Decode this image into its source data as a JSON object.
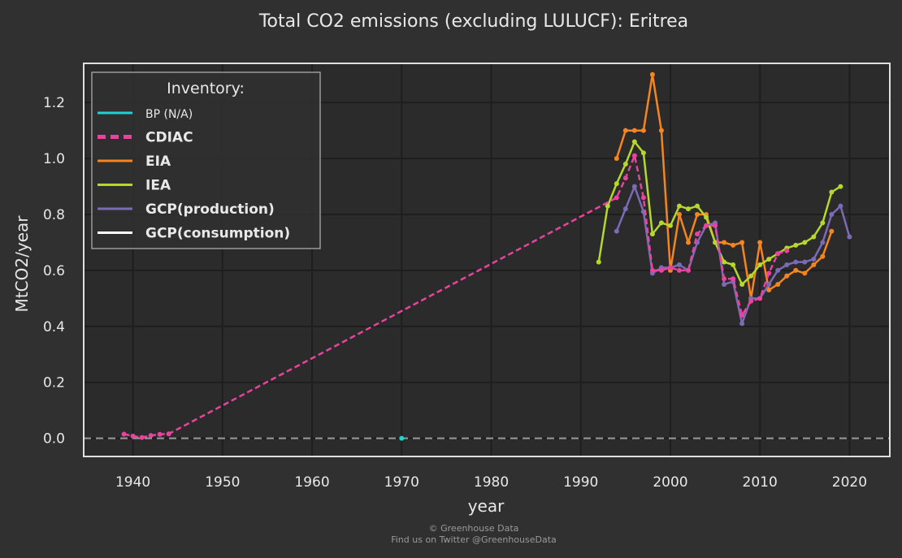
{
  "chart_data": {
    "type": "line",
    "title": "Total CO2 emissions (excluding LULUCF): Eritrea",
    "xlabel": "year",
    "ylabel": "MtCO2/year",
    "xlim": [
      1934.5,
      2024.5
    ],
    "ylim": [
      -0.065,
      1.34
    ],
    "x_ticks": [
      1940,
      1950,
      1960,
      1970,
      1980,
      1990,
      2000,
      2010,
      2020
    ],
    "y_ticks": [
      0.0,
      0.2,
      0.4,
      0.6,
      0.8,
      1.0,
      1.2
    ],
    "x_tick_labels": [
      "1940",
      "1950",
      "1960",
      "1970",
      "1980",
      "1990",
      "2000",
      "2010",
      "2020"
    ],
    "y_tick_labels": [
      "0.0",
      "0.2",
      "0.4",
      "0.6",
      "0.8",
      "1.0",
      "1.2"
    ],
    "grid": true,
    "zero_line": true,
    "legend": {
      "title": "Inventory:",
      "placement": "top-left",
      "entries": [
        {
          "label": "BP (N/A)",
          "color": "#1fd1d1",
          "style": "solid",
          "bold": false
        },
        {
          "label": "CDIAC",
          "color": "#e8439e",
          "style": "dashed",
          "bold": true
        },
        {
          "label": "EIA",
          "color": "#f5851f",
          "style": "solid",
          "bold": true
        },
        {
          "label": "IEA",
          "color": "#b5d82a",
          "style": "solid",
          "bold": true
        },
        {
          "label": "GCP(production)",
          "color": "#7b6bb5",
          "style": "solid",
          "bold": true
        },
        {
          "label": "GCP(consumption)",
          "color": "#ffffff",
          "style": "solid",
          "bold": true
        }
      ]
    },
    "series": [
      {
        "name": "BP (N/A)",
        "color": "#1fd1d1",
        "style": "solid",
        "x": [
          1970
        ],
        "y": [
          0.0
        ]
      },
      {
        "name": "CDIAC",
        "color": "#e8439e",
        "style": "dashed",
        "x": [
          1939,
          1940,
          1941,
          1942,
          1943,
          1944,
          1994,
          1995,
          1996,
          1997,
          1998,
          1999,
          2000,
          2001,
          2002,
          2003,
          2004,
          2005,
          2006,
          2007,
          2008,
          2009,
          2010,
          2011,
          2012,
          2013
        ],
        "y": [
          0.015,
          0.008,
          0.003,
          0.01,
          0.014,
          0.016,
          0.86,
          0.93,
          1.01,
          0.86,
          0.6,
          0.6,
          0.61,
          0.6,
          0.6,
          0.73,
          0.76,
          0.76,
          0.57,
          0.57,
          0.44,
          0.49,
          0.5,
          0.59,
          0.66,
          0.67
        ]
      },
      {
        "name": "EIA",
        "color": "#f5851f",
        "style": "solid",
        "x": [
          1994,
          1995,
          1996,
          1997,
          1998,
          1999,
          2000,
          2001,
          2002,
          2003,
          2004,
          2005,
          2006,
          2007,
          2008,
          2009,
          2010,
          2011,
          2012,
          2013,
          2014,
          2015,
          2016,
          2017,
          2018
        ],
        "y": [
          1.0,
          1.1,
          1.1,
          1.1,
          1.3,
          1.1,
          0.6,
          0.8,
          0.7,
          0.8,
          0.8,
          0.7,
          0.7,
          0.69,
          0.7,
          0.5,
          0.7,
          0.53,
          0.55,
          0.58,
          0.6,
          0.59,
          0.62,
          0.65,
          0.74
        ]
      },
      {
        "name": "IEA",
        "color": "#b5d82a",
        "style": "solid",
        "x": [
          1992,
          1993,
          1994,
          1995,
          1996,
          1997,
          1998,
          1999,
          2000,
          2001,
          2002,
          2003,
          2004,
          2005,
          2006,
          2007,
          2008,
          2009,
          2010,
          2011,
          2012,
          2013,
          2014,
          2015,
          2016,
          2017,
          2018,
          2019
        ],
        "y": [
          0.63,
          0.83,
          0.91,
          0.98,
          1.06,
          1.02,
          0.73,
          0.77,
          0.76,
          0.83,
          0.82,
          0.83,
          0.79,
          0.7,
          0.63,
          0.62,
          0.55,
          0.58,
          0.62,
          0.64,
          0.66,
          0.68,
          0.69,
          0.7,
          0.72,
          0.77,
          0.88,
          0.9
        ]
      },
      {
        "name": "GCP(production)",
        "color": "#7b6bb5",
        "style": "solid",
        "x": [
          1994,
          1995,
          1996,
          1997,
          1998,
          1999,
          2000,
          2001,
          2002,
          2003,
          2004,
          2005,
          2006,
          2007,
          2008,
          2009,
          2010,
          2011,
          2012,
          2013,
          2014,
          2015,
          2016,
          2017,
          2018,
          2019,
          2020
        ],
        "y": [
          0.74,
          0.82,
          0.9,
          0.81,
          0.59,
          0.61,
          0.61,
          0.62,
          0.6,
          0.7,
          0.76,
          0.77,
          0.55,
          0.56,
          0.41,
          0.5,
          0.5,
          0.55,
          0.6,
          0.62,
          0.63,
          0.63,
          0.64,
          0.7,
          0.8,
          0.83,
          0.72
        ]
      },
      {
        "name": "GCP(consumption)",
        "color": "#ffffff",
        "style": "solid",
        "x": [],
        "y": []
      }
    ]
  },
  "footer": {
    "line1": "© Greenhouse Data",
    "line2": "Find us on Twitter @GreenhouseData"
  }
}
